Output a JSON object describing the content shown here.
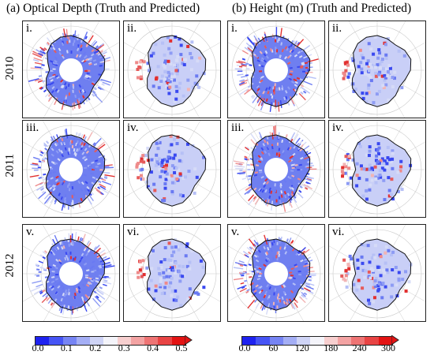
{
  "headings": {
    "optical_depth": "(a) Optical Depth (Truth and Predicted)",
    "height": "(b) Height (m) (Truth and Predicted)"
  },
  "years": [
    "2010",
    "2011",
    "2012"
  ],
  "panel_labels": {
    "row1": [
      "i.",
      "ii.",
      "i.",
      "ii."
    ],
    "row2": [
      "iii.",
      "iv.",
      "iii.",
      "iv."
    ],
    "row3": [
      "v.",
      "vi.",
      "v.",
      "vi."
    ]
  },
  "colorbars": {
    "optical_depth": {
      "ticks": [
        "0.0",
        "0.1",
        "0.2",
        "0.3",
        "0.4",
        "0.5"
      ],
      "colors": [
        "#1e22f0",
        "#4654f5",
        "#7684f4",
        "#a4aef5",
        "#cfd4f6",
        "#f4f4fa",
        "#f7cfcf",
        "#f3a3a3",
        "#ee7474",
        "#e84444",
        "#e31313"
      ]
    },
    "height": {
      "ticks": [
        "0.0",
        "60",
        "120",
        "180",
        "240",
        "300"
      ],
      "colors": [
        "#1e22f0",
        "#4654f5",
        "#7684f4",
        "#a4aef5",
        "#cfd4f6",
        "#f4f4fa",
        "#f7cfcf",
        "#f3a3a3",
        "#ee7474",
        "#e84444",
        "#e31313"
      ]
    }
  },
  "icons": {
    "polar_map": "antarctica-polar-map-icon"
  }
}
